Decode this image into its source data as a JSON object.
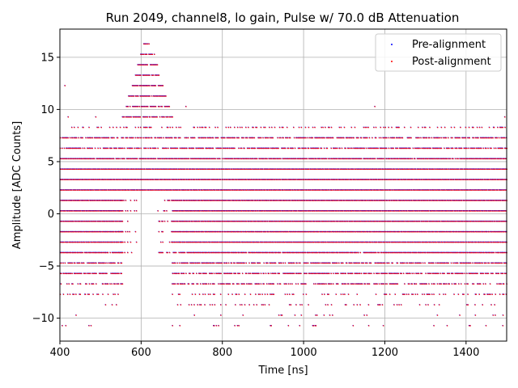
{
  "chart_data": {
    "type": "scatter",
    "title": "Run 2049, channel8, lo gain, Pulse w/ 70.0 dB Attenuation",
    "xlabel": "Time [ns]",
    "ylabel": "Amplitude [ADC Counts]",
    "xlim": [
      400,
      1500
    ],
    "ylim": [
      -12.2,
      17.7
    ],
    "xticks": [
      400,
      600,
      800,
      1000,
      1200,
      1400
    ],
    "yticks": [
      -10,
      -5,
      0,
      5,
      10,
      15
    ],
    "grid": true,
    "legend_position": "top-right",
    "series": [
      {
        "name": "Pre-alignment",
        "color": "#0000ff",
        "marker": "point"
      },
      {
        "name": "Post-alignment",
        "color": "#ff0000",
        "marker": "point"
      }
    ],
    "baseline_levels": [
      -6.7,
      -5.7,
      -4.7,
      -3.7,
      -2.7,
      -1.7,
      -0.7,
      0.3,
      1.3,
      2.3,
      3.3,
      4.3,
      5.3,
      6.3,
      7.3
    ],
    "sparse_levels": [
      8.3,
      -7.7,
      -8.7,
      -9.7,
      -10.7
    ],
    "pulse": {
      "start_ns": 555,
      "peak_ns": 615,
      "end_ns": 675,
      "peak_amplitude": 16.3,
      "levels": [
        9.3,
        10.3,
        11.3,
        12.3,
        13.3,
        14.3,
        15.3,
        16.3
      ]
    },
    "notable_points": [
      {
        "x": 412,
        "y": 12.3
      },
      {
        "x": 420,
        "y": 9.3
      },
      {
        "x": 488,
        "y": 9.3
      },
      {
        "x": 710,
        "y": 10.3
      },
      {
        "x": 1175,
        "y": 10.3
      },
      {
        "x": 1495,
        "y": 9.3
      },
      {
        "x": 785,
        "y": -10.7
      },
      {
        "x": 920,
        "y": -10.7
      },
      {
        "x": 990,
        "y": -10.7
      },
      {
        "x": 1160,
        "y": -10.7
      }
    ]
  }
}
